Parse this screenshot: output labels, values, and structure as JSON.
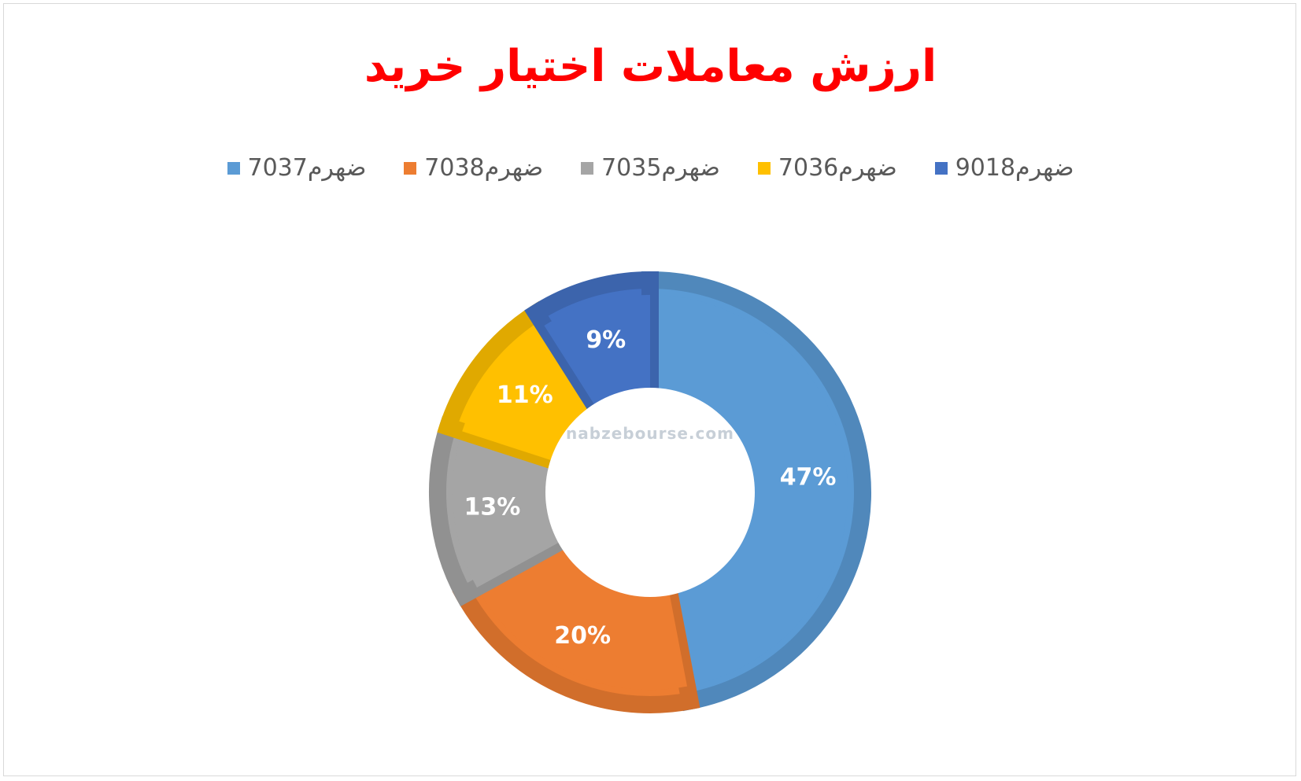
{
  "chart_data": {
    "type": "pie",
    "donut": true,
    "title": "ارزش معاملات اختیار خرید",
    "legend_position": "top",
    "series": [
      {
        "name": "ضهرم7037",
        "value": 47,
        "label": "47%",
        "color": "#5b9bd5"
      },
      {
        "name": "ضهرم7038",
        "value": 20,
        "label": "20%",
        "color": "#ed7d31"
      },
      {
        "name": "ضهرم7035",
        "value": 13,
        "label": "13%",
        "color": "#a5a5a5"
      },
      {
        "name": "ضهرم7036",
        "value": 11,
        "label": "11%",
        "color": "#ffc000"
      },
      {
        "name": "ضهرم9018",
        "value": 9,
        "label": "9%",
        "color": "#4472c4"
      }
    ]
  },
  "watermark": {
    "text": "nabzebourse.com"
  }
}
